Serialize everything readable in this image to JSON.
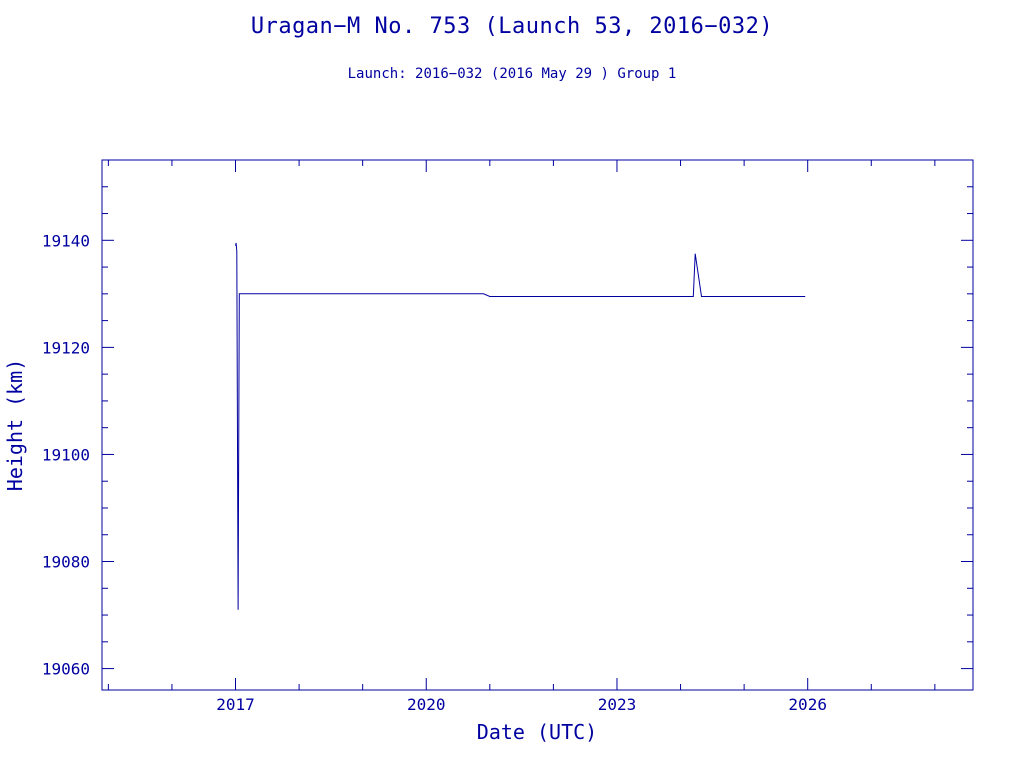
{
  "chart_data": {
    "type": "line",
    "title": "Uragan−M No. 753 (Launch 53, 2016−032)",
    "subtitle": "Launch: 2016−032  (2016 May 29 )  Group 1",
    "xlabel": "Date (UTC)",
    "ylabel": "Height (km)",
    "xlim": [
      2014.9,
      2028.6
    ],
    "ylim": [
      19056,
      19155
    ],
    "x_ticks": [
      2017,
      2020,
      2023,
      2026
    ],
    "x_tick_labels": [
      "2017",
      "2020",
      "2023",
      "2026"
    ],
    "y_ticks": [
      19060,
      19080,
      19100,
      19120,
      19140
    ],
    "y_tick_labels": [
      "19060",
      "19080",
      "19100",
      "19120",
      "19140"
    ],
    "grid": false,
    "color": "#0000a0",
    "series": [
      {
        "x": [
          2017.0,
          2017.01,
          2017.02,
          2017.04,
          2017.04,
          2017.06,
          2017.08,
          2017.1,
          2020.0,
          2020.9,
          2021.0,
          2021.5,
          2022.5,
          2023.5,
          2024.2,
          2024.23,
          2024.33,
          2024.36,
          2025.0,
          2025.5,
          2025.96
        ],
        "y": [
          19139,
          19139.5,
          19138,
          19071,
          19071,
          19130,
          19130,
          19130,
          19130,
          19130,
          19129.5,
          19129.5,
          19129.5,
          19129.5,
          19129.5,
          19137.5,
          19129.5,
          19129.5,
          19129.5,
          19129.5,
          19129.5
        ]
      }
    ]
  }
}
